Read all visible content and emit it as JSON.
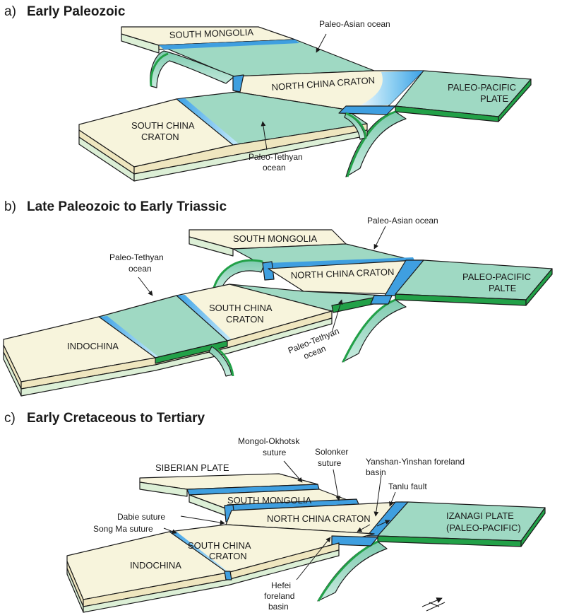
{
  "panels": [
    {
      "letter": "a)",
      "title": "Early Paleozoic",
      "labels": {
        "south_mongolia": "SOUTH MONGOLIA",
        "paleo_asian": "Paleo-Asian ocean",
        "north_china_craton": "NORTH CHINA CRATON",
        "paleo_pacific_1": "PALEO-PACIFIC",
        "paleo_pacific_2": "PLATE",
        "south_china_1": "SOUTH CHINA",
        "south_china_2": "CRATON",
        "paleo_tethyan_1": "Paleo-Tethyan",
        "paleo_tethyan_2": "ocean"
      }
    },
    {
      "letter": "b)",
      "title": "Late Paleozoic to Early Triassic",
      "labels": {
        "south_mongolia": "SOUTH MONGOLIA",
        "paleo_asian": "Paleo-Asian ocean",
        "north_china_craton": "NORTH CHINA CRATON",
        "paleo_pacific_1": "PALEO-PACIFIC",
        "paleo_pacific_2": "PALTE",
        "paleo_tethyan_w_1": "Paleo-Tethyan",
        "paleo_tethyan_w_2": "ocean",
        "south_china_1": "SOUTH CHINA",
        "south_china_2": "CRATON",
        "indochina": "INDOCHINA",
        "paleo_tethyan_e_1": "Paleo-Tethyan",
        "paleo_tethyan_e_2": "ocean"
      }
    },
    {
      "letter": "c)",
      "title": "Early Cretaceous to Tertiary",
      "labels": {
        "mongol_okhotsk_1": "Mongol-Okhotsk",
        "mongol_okhotsk_2": "suture",
        "solonker_1": "Solonker",
        "solonker_2": "suture",
        "yanshan_1": "Yanshan-Yinshan foreland",
        "yanshan_2": "basin",
        "siberian_plate": "SIBERIAN PLATE",
        "tanlu_fault": "Tanlu fault",
        "south_mongolia": "SOUTH MONGOLIA",
        "dabie_suture": "Dabie suture",
        "north_china_craton": "NORTH CHINA CRATON",
        "izanagi_1": "IZANAGI PLATE",
        "izanagi_2": "(PALEO-PACIFIC)",
        "song_ma_suture": "Song Ma suture",
        "south_china_1": "SOUTH CHINA",
        "south_china_2": "CRATON",
        "indochina": "INDOCHINA",
        "hefei_1": "Hefei",
        "hefei_2": "foreland",
        "hefei_3": "basin"
      }
    }
  ],
  "colors": {
    "continent_top": "#f7f4dc",
    "continent_side": "#efe6bf",
    "base_layer": "#dcefd6",
    "ocean_plate": "#9fd9c3",
    "ocean_dark": "#5fb89a",
    "rim_green": "#22a148",
    "suture_blue": "#3f9fe0",
    "outline": "#1a1a1a"
  }
}
